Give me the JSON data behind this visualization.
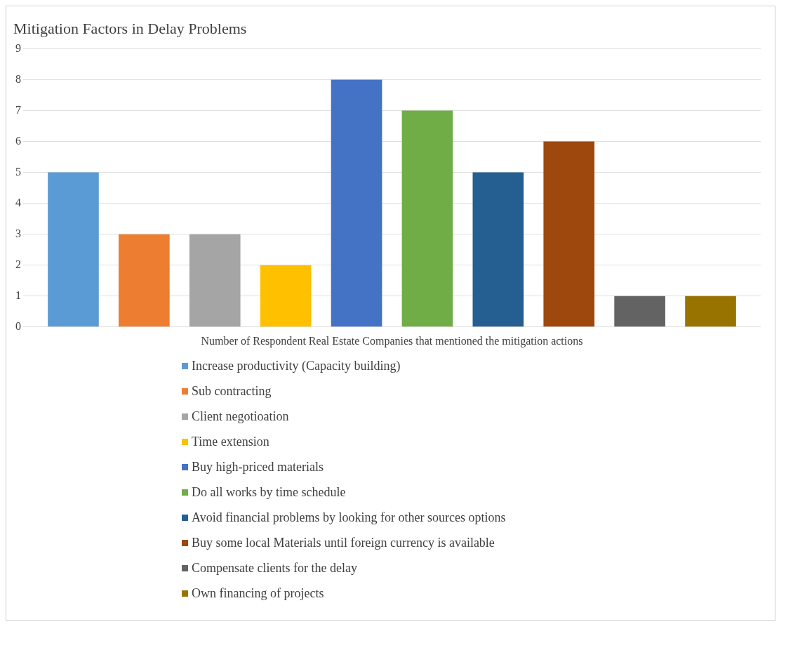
{
  "chart_data": {
    "type": "bar",
    "title": "Mitigation Factors in Delay Problems",
    "categories": [
      "Number of Respondent Real Estate Companies that mentioned the mitigation actions"
    ],
    "series": [
      {
        "name": "Increase productivity (Capacity building)",
        "color": "#5b9bd5",
        "values": [
          5
        ]
      },
      {
        "name": "Sub contracting",
        "color": "#ed7d31",
        "values": [
          3
        ]
      },
      {
        "name": "Client negotioation",
        "color": "#a5a5a5",
        "values": [
          3
        ]
      },
      {
        "name": "Time extension",
        "color": "#ffc000",
        "values": [
          2
        ]
      },
      {
        "name": "Buy high-priced materials",
        "color": "#4472c4",
        "values": [
          8
        ]
      },
      {
        "name": "Do all works by time schedule",
        "color": "#70ad47",
        "values": [
          7
        ]
      },
      {
        "name": "Avoid financial problems by looking for other sources options",
        "color": "#255e91",
        "values": [
          5
        ]
      },
      {
        "name": "Buy some local Materials until foreign currency is available",
        "color": "#9e480e",
        "values": [
          6
        ]
      },
      {
        "name": "Compensate clients for the delay",
        "color": "#636363",
        "values": [
          1
        ]
      },
      {
        "name": "Own financing of projects",
        "color": "#997300",
        "values": [
          1
        ]
      }
    ],
    "ylim": [
      0,
      9
    ],
    "yticks": [
      0,
      1,
      2,
      3,
      4,
      5,
      6,
      7,
      8,
      9
    ],
    "grid": "y",
    "legend": "bottom"
  }
}
